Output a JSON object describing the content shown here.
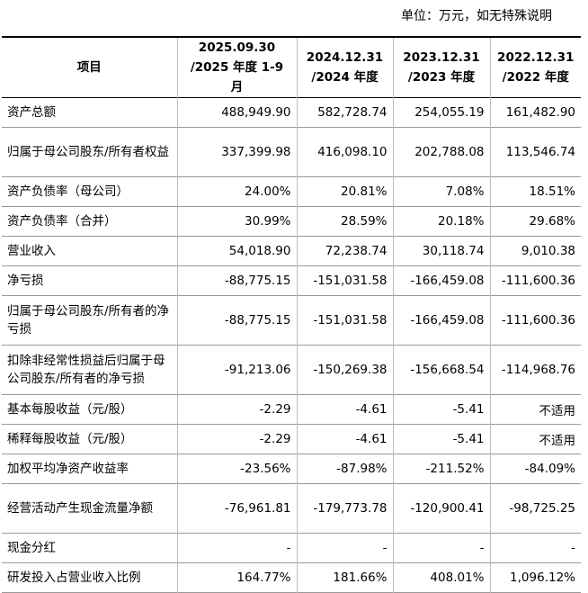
{
  "unit_note": "单位：万元，如无特殊说明",
  "table": {
    "header_label": "项目",
    "columns": [
      {
        "date": "2025.09.30",
        "period": "/2025 年度 1-9 月"
      },
      {
        "date": "2024.12.31",
        "period": "/2024 年度"
      },
      {
        "date": "2023.12.31",
        "period": "/2023 年度"
      },
      {
        "date": "2022.12.31",
        "period": "/2022 年度"
      }
    ],
    "rows": [
      [
        "资产总额",
        "488,949.90",
        "582,728.74",
        "254,055.19",
        "161,482.90"
      ],
      [
        "归属于母公司股东/所有者权益",
        "337,399.98",
        "416,098.10",
        "202,788.08",
        "113,546.74"
      ],
      [
        "资产负债率（母公司）",
        "24.00%",
        "20.81%",
        "7.08%",
        "18.51%"
      ],
      [
        "资产负债率（合并）",
        "30.99%",
        "28.59%",
        "20.18%",
        "29.68%"
      ],
      [
        "营业收入",
        "54,018.90",
        "72,238.74",
        "30,118.74",
        "9,010.38"
      ],
      [
        "净亏损",
        "-88,775.15",
        "-151,031.58",
        "-166,459.08",
        "-111,600.36"
      ],
      [
        "归属于母公司股东/所有者的净亏损",
        "-88,775.15",
        "-151,031.58",
        "-166,459.08",
        "-111,600.36"
      ],
      [
        "扣除非经常性损益后归属于母公司股东/所有者的净亏损",
        "-91,213.06",
        "-150,269.38",
        "-156,668.54",
        "-114,968.76"
      ],
      [
        "基本每股收益（元/股）",
        "-2.29",
        "-4.61",
        "-5.41",
        "不适用"
      ],
      [
        "稀释每股收益（元/股）",
        "-2.29",
        "-4.61",
        "-5.41",
        "不适用"
      ],
      [
        "加权平均净资产收益率",
        "-23.56%",
        "-87.98%",
        "-211.52%",
        "-84.09%"
      ],
      [
        "经营活动产生现金流量净额",
        "-76,961.81",
        "-179,773.78",
        "-120,900.41",
        "-98,725.25"
      ],
      [
        "现金分红",
        "-",
        "-",
        "-",
        "-"
      ],
      [
        "研发投入占营业收入比例",
        "164.77%",
        "181.66%",
        "408.01%",
        "1,096.12%"
      ]
    ]
  }
}
